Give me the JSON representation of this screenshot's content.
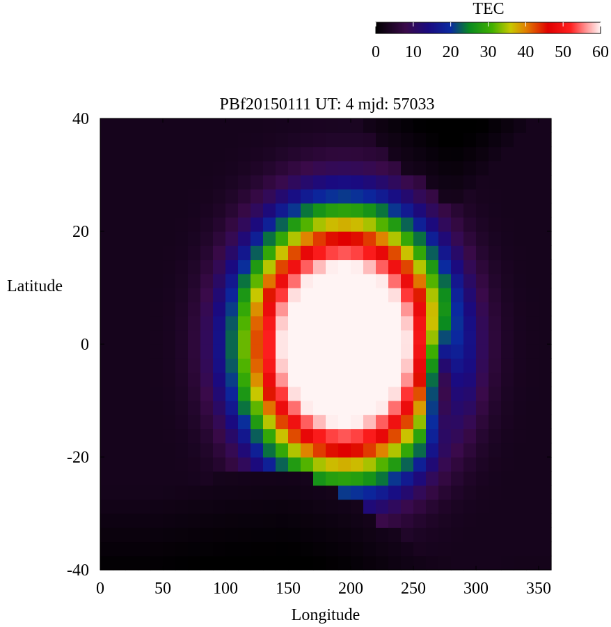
{
  "chart_data": {
    "type": "heatmap",
    "title": "PBf20150111  UT: 4  mjd: 57033",
    "xlabel": "Longitude",
    "ylabel": "Latitude",
    "xlim": [
      0,
      360
    ],
    "ylim": [
      -40,
      40
    ],
    "x_ticks": [
      "0",
      "50",
      "100",
      "150",
      "200",
      "250",
      "300",
      "350"
    ],
    "y_ticks": [
      "40",
      "20",
      "0",
      "-20",
      "-40"
    ],
    "colorbar": {
      "label": "TEC",
      "range": [
        0,
        60
      ],
      "ticks": [
        "0",
        "10",
        "20",
        "30",
        "40",
        "50",
        "60"
      ],
      "stops": [
        {
          "value": 0,
          "color": "#000000"
        },
        {
          "value": 8,
          "color": "#3a0a4a"
        },
        {
          "value": 14,
          "color": "#1a0a80"
        },
        {
          "value": 20,
          "color": "#0a2aa0"
        },
        {
          "value": 25,
          "color": "#0a8a20"
        },
        {
          "value": 31,
          "color": "#40b000"
        },
        {
          "value": 36,
          "color": "#c8c800"
        },
        {
          "value": 40,
          "color": "#e08000"
        },
        {
          "value": 46,
          "color": "#e00000"
        },
        {
          "value": 52,
          "color": "#ff2020"
        },
        {
          "value": 56,
          "color": "#ff9090"
        },
        {
          "value": 60,
          "color": "#fff4f4"
        }
      ]
    },
    "grid": {
      "lon_step": 10,
      "lat_step": 2.5
    },
    "features": {
      "background_tec": 3,
      "dayside_crest": {
        "lon_center": 195,
        "lon_half_width": 92,
        "lat_center": 0,
        "lat_half_width": 26,
        "peak_tec": 68
      },
      "secondary_trough": {
        "lon_center": 272,
        "lat_center": -6,
        "depth": 22
      },
      "data_mask": {
        "south_boundary_lat": [
          [
            40,
            -26
          ],
          [
            100,
            -23
          ],
          [
            150,
            -22
          ],
          [
            200,
            -27
          ],
          [
            250,
            -36
          ],
          [
            300,
            -40
          ],
          [
            330,
            -38
          ]
        ],
        "north_boundary_lat": [
          [
            40,
            40
          ],
          [
            200,
            40
          ],
          [
            240,
            32
          ],
          [
            280,
            25
          ],
          [
            300,
            28
          ],
          [
            330,
            35
          ],
          [
            350,
            40
          ]
        ]
      }
    }
  }
}
